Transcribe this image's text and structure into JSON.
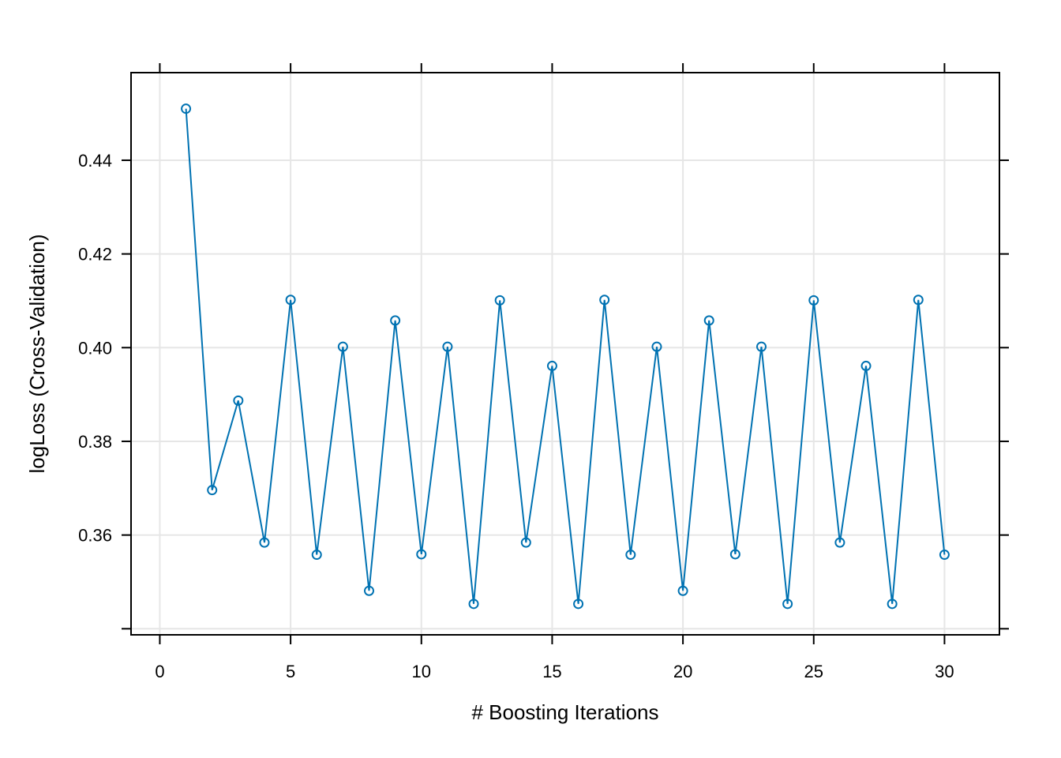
{
  "chart_data": {
    "type": "line",
    "title": "",
    "xlabel": "# Boosting Iterations",
    "ylabel": "logLoss (Cross-Validation)",
    "xlim": [
      -1.1,
      32.1
    ],
    "ylim": [
      0.3387,
      0.4587
    ],
    "x_ticks": [
      0,
      5,
      10,
      15,
      20,
      25,
      30
    ],
    "x_tick_labels": [
      "0",
      "5",
      "10",
      "15",
      "20",
      "25",
      "30"
    ],
    "y_ticks": [
      0.34,
      0.36,
      0.38,
      0.4,
      0.42,
      0.44
    ],
    "y_tick_labels": [
      "",
      "0.36",
      "0.38",
      "0.40",
      "0.42",
      "0.44"
    ],
    "grid": true,
    "color": "#0072b2",
    "series": [
      {
        "x": [
          1,
          2,
          3,
          4,
          5,
          6,
          7,
          8,
          9,
          10,
          11,
          12,
          13,
          14,
          15,
          16,
          17,
          18,
          19,
          20,
          21,
          22,
          23,
          24,
          25,
          26,
          27,
          28,
          29,
          30
        ],
        "values": [
          0.451,
          0.3696,
          0.3887,
          0.3584,
          0.4102,
          0.3558,
          0.4002,
          0.3481,
          0.4058,
          0.3559,
          0.4002,
          0.3453,
          0.4101,
          0.3584,
          0.3961,
          0.3453,
          0.4102,
          0.3558,
          0.4002,
          0.3481,
          0.4058,
          0.3559,
          0.4002,
          0.3453,
          0.4101,
          0.3584,
          0.3961,
          0.3453,
          0.4102,
          0.3558
        ]
      }
    ]
  }
}
